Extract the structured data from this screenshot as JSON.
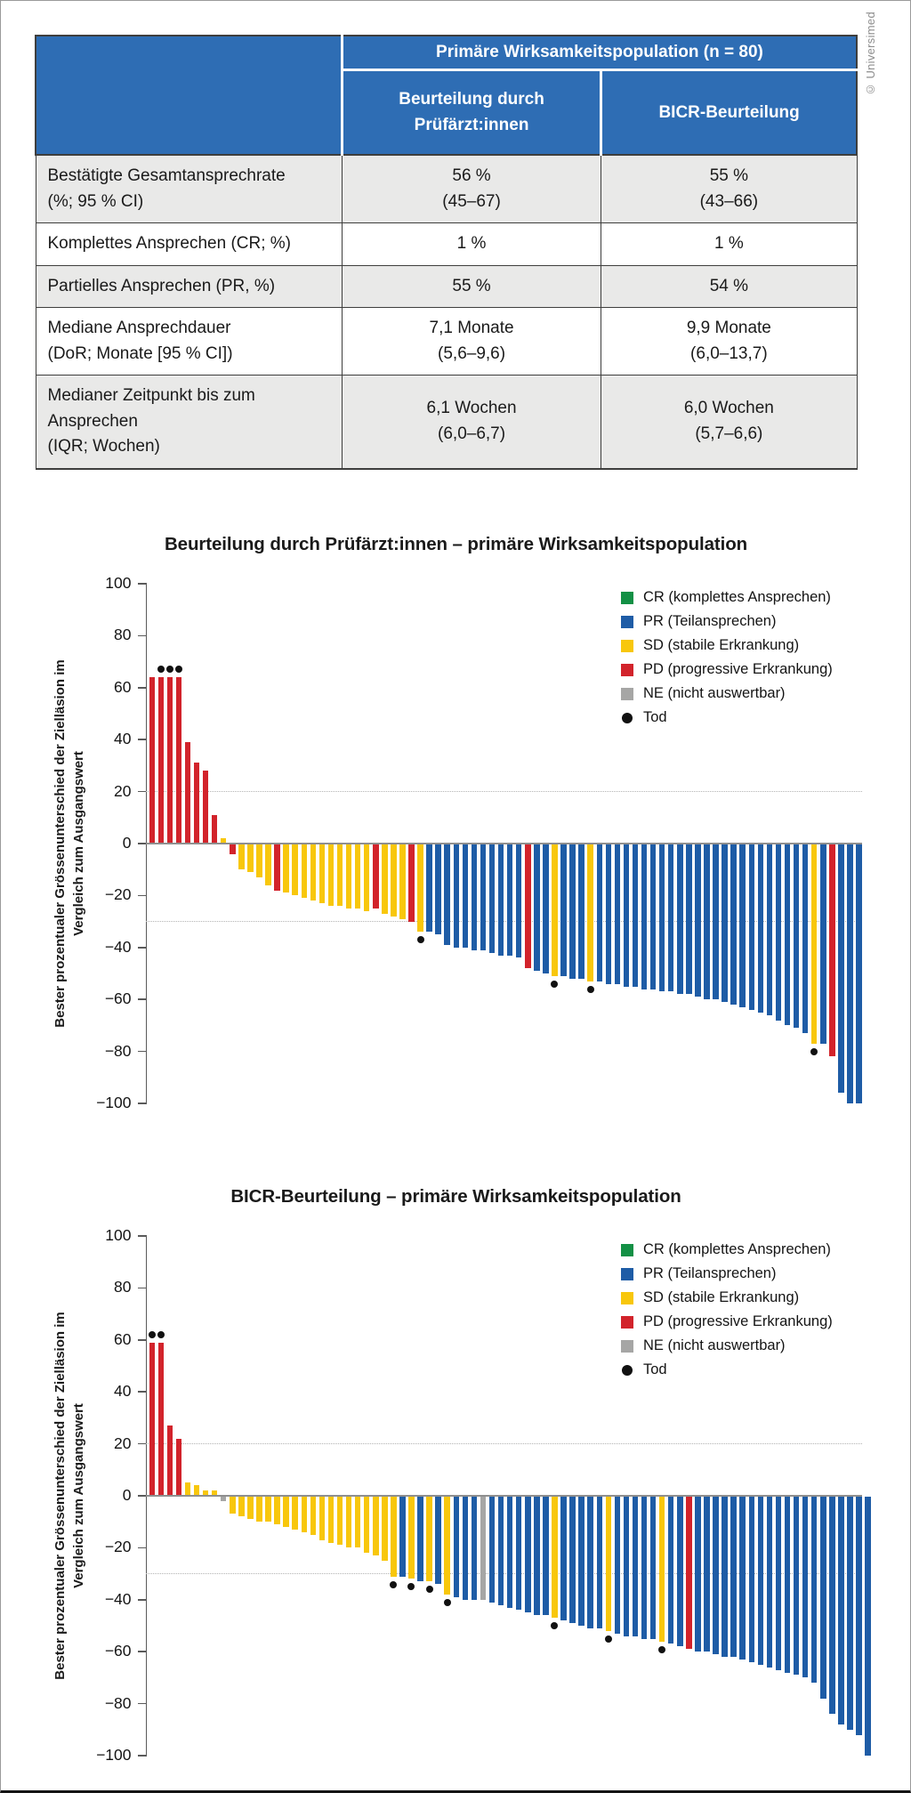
{
  "copyright": "© Universimed",
  "colors": {
    "CR": "#139045",
    "PR": "#1e5ca6",
    "SD": "#f8c70c",
    "PD": "#d2232b",
    "NE": "#a6a6a5",
    "death_dot": "#111111",
    "table_header_blue": "#2e6db4",
    "row_shade": "#e9e9e8",
    "zero_line": "#8f8f8f",
    "dotted_grid": "#b3b3b3",
    "axis": "#5a5a5a"
  },
  "table": {
    "group_header": "Primäre Wirksamkeitspopulation (n = 80)",
    "col_headers": [
      [
        "Beurteilung durch",
        "Prüfärzt:innen"
      ],
      [
        "BICR-Beurteilung"
      ]
    ],
    "rows": [
      {
        "label": [
          "Bestätigte Gesamtansprechrate",
          "(%; 95 % CI)"
        ],
        "investigator": [
          "56 %",
          "(45–67)"
        ],
        "bicr": [
          "55 %",
          "(43–66)"
        ]
      },
      {
        "label": [
          "Komplettes Ansprechen (CR; %)"
        ],
        "investigator": [
          "1 %"
        ],
        "bicr": [
          "1 %"
        ]
      },
      {
        "label": [
          "Partielles Ansprechen (PR, %)"
        ],
        "investigator": [
          "55 %"
        ],
        "bicr": [
          "54 %"
        ]
      },
      {
        "label": [
          "Mediane Ansprechdauer",
          "(DoR; Monate [95 % CI])"
        ],
        "investigator": [
          "7,1 Monate",
          "(5,6–9,6)"
        ],
        "bicr": [
          "9,9 Monate",
          "(6,0–13,7)"
        ]
      },
      {
        "label": [
          "Medianer Zeitpunkt bis zum Ansprechen",
          "(IQR; Wochen)"
        ],
        "investigator": [
          "6,1 Wochen",
          "(6,0–6,7)"
        ],
        "bicr": [
          "6,0 Wochen",
          "(5,7–6,6)"
        ]
      }
    ]
  },
  "chart_data": [
    {
      "type": "bar",
      "subtype": "waterfall",
      "title": "Beurteilung durch Prüfärzt:innen – primäre Wirksamkeitspopulation",
      "ylabel": [
        "Bester prozentualer Grössenunterschied der Zielläsion im",
        "Vergleich zum Ausgangswert"
      ],
      "ylim": [
        -100,
        100
      ],
      "yticks": [
        100,
        80,
        60,
        40,
        20,
        0,
        -20,
        -40,
        -60,
        -80,
        -100
      ],
      "reference_lines": [
        20,
        -30
      ],
      "grid": "dotted-reference-only",
      "legend_position": "top-right",
      "legend": [
        {
          "key": "CR",
          "label": "CR (komplettes Ansprechen)"
        },
        {
          "key": "PR",
          "label": "PR (Teilansprechen)"
        },
        {
          "key": "SD",
          "label": "SD (stabile Erkrankung)"
        },
        {
          "key": "PD",
          "label": "PD (progressive Erkrankung)"
        },
        {
          "key": "NE",
          "label": "NE (nicht auswertbar)"
        },
        {
          "key": "Tod",
          "label": "Tod",
          "shape": "dot"
        }
      ],
      "bars_format": [
        "value_percent",
        "status",
        "death_dot"
      ],
      "bars": [
        [
          64,
          "PD",
          0
        ],
        [
          64,
          "PD",
          1
        ],
        [
          64,
          "PD",
          1
        ],
        [
          64,
          "PD",
          1
        ],
        [
          39,
          "PD",
          0
        ],
        [
          31,
          "PD",
          0
        ],
        [
          28,
          "PD",
          0
        ],
        [
          11,
          "PD",
          0
        ],
        [
          2,
          "SD",
          0
        ],
        [
          -4,
          "PD",
          0
        ],
        [
          -10,
          "SD",
          0
        ],
        [
          -11,
          "SD",
          0
        ],
        [
          -13,
          "SD",
          0
        ],
        [
          -16,
          "SD",
          0
        ],
        [
          -18,
          "PD",
          0
        ],
        [
          -19,
          "SD",
          0
        ],
        [
          -20,
          "SD",
          0
        ],
        [
          -21,
          "SD",
          0
        ],
        [
          -22,
          "SD",
          0
        ],
        [
          -23,
          "SD",
          0
        ],
        [
          -24,
          "SD",
          0
        ],
        [
          -24,
          "SD",
          0
        ],
        [
          -25,
          "SD",
          0
        ],
        [
          -25,
          "SD",
          0
        ],
        [
          -26,
          "SD",
          0
        ],
        [
          -25,
          "PD",
          0
        ],
        [
          -27,
          "SD",
          0
        ],
        [
          -28,
          "SD",
          0
        ],
        [
          -29,
          "SD",
          0
        ],
        [
          -30,
          "PD",
          0
        ],
        [
          -34,
          "SD",
          1
        ],
        [
          -34,
          "PR",
          0
        ],
        [
          -35,
          "PR",
          0
        ],
        [
          -39,
          "PR",
          0
        ],
        [
          -40,
          "PR",
          0
        ],
        [
          -40,
          "PR",
          0
        ],
        [
          -41,
          "PR",
          0
        ],
        [
          -41,
          "PR",
          0
        ],
        [
          -42,
          "PR",
          0
        ],
        [
          -43,
          "PR",
          0
        ],
        [
          -43,
          "PR",
          0
        ],
        [
          -44,
          "PR",
          0
        ],
        [
          -48,
          "PD",
          0
        ],
        [
          -49,
          "PR",
          0
        ],
        [
          -50,
          "PR",
          0
        ],
        [
          -51,
          "SD",
          1
        ],
        [
          -51,
          "PR",
          0
        ],
        [
          -52,
          "PR",
          0
        ],
        [
          -52,
          "PR",
          0
        ],
        [
          -53,
          "SD",
          1
        ],
        [
          -53,
          "PR",
          0
        ],
        [
          -54,
          "PR",
          0
        ],
        [
          -54,
          "PR",
          0
        ],
        [
          -55,
          "PR",
          0
        ],
        [
          -55,
          "PR",
          0
        ],
        [
          -56,
          "PR",
          0
        ],
        [
          -56,
          "PR",
          0
        ],
        [
          -57,
          "PR",
          0
        ],
        [
          -57,
          "PR",
          0
        ],
        [
          -58,
          "PR",
          0
        ],
        [
          -58,
          "PR",
          0
        ],
        [
          -59,
          "PR",
          0
        ],
        [
          -60,
          "PR",
          0
        ],
        [
          -60,
          "PR",
          0
        ],
        [
          -61,
          "PR",
          0
        ],
        [
          -62,
          "PR",
          0
        ],
        [
          -63,
          "PR",
          0
        ],
        [
          -64,
          "PR",
          0
        ],
        [
          -65,
          "PR",
          0
        ],
        [
          -66,
          "PR",
          0
        ],
        [
          -68,
          "PR",
          0
        ],
        [
          -70,
          "PR",
          0
        ],
        [
          -71,
          "PR",
          0
        ],
        [
          -73,
          "PR",
          0
        ],
        [
          -77,
          "SD",
          1
        ],
        [
          -77,
          "PR",
          0
        ],
        [
          -82,
          "PD",
          0
        ],
        [
          -96,
          "PR",
          0
        ],
        [
          -100,
          "PR",
          0
        ],
        [
          -100,
          "PR",
          0
        ]
      ]
    },
    {
      "type": "bar",
      "subtype": "waterfall",
      "title": "BICR-Beurteilung – primäre Wirksamkeitspopulation",
      "ylabel": [
        "Bester prozentualer Grössenunterschied der Zielläsion im",
        "Vergleich zum Ausgangswert"
      ],
      "ylim": [
        -100,
        100
      ],
      "yticks": [
        100,
        80,
        60,
        40,
        20,
        0,
        -20,
        -40,
        -60,
        -80,
        -100
      ],
      "reference_lines": [
        20,
        -30
      ],
      "grid": "dotted-reference-only",
      "legend_position": "top-right",
      "legend": [
        {
          "key": "CR",
          "label": "CR (komplettes Ansprechen)"
        },
        {
          "key": "PR",
          "label": "PR (Teilansprechen)"
        },
        {
          "key": "SD",
          "label": "SD (stabile Erkrankung)"
        },
        {
          "key": "PD",
          "label": "PD (progressive Erkrankung)"
        },
        {
          "key": "NE",
          "label": "NE (nicht auswertbar)"
        },
        {
          "key": "Tod",
          "label": "Tod",
          "shape": "dot"
        }
      ],
      "bars_format": [
        "value_percent",
        "status",
        "death_dot"
      ],
      "bars": [
        [
          59,
          "PD",
          1
        ],
        [
          59,
          "PD",
          1
        ],
        [
          27,
          "PD",
          0
        ],
        [
          22,
          "PD",
          0
        ],
        [
          5,
          "SD",
          0
        ],
        [
          4,
          "SD",
          0
        ],
        [
          2,
          "SD",
          0
        ],
        [
          2,
          "SD",
          0
        ],
        [
          -2,
          "NE",
          0
        ],
        [
          -7,
          "SD",
          0
        ],
        [
          -8,
          "SD",
          0
        ],
        [
          -9,
          "SD",
          0
        ],
        [
          -10,
          "SD",
          0
        ],
        [
          -10,
          "SD",
          0
        ],
        [
          -11,
          "SD",
          0
        ],
        [
          -12,
          "SD",
          0
        ],
        [
          -13,
          "SD",
          0
        ],
        [
          -14,
          "SD",
          0
        ],
        [
          -15,
          "SD",
          0
        ],
        [
          -17,
          "SD",
          0
        ],
        [
          -18,
          "SD",
          0
        ],
        [
          -19,
          "SD",
          0
        ],
        [
          -20,
          "SD",
          0
        ],
        [
          -20,
          "SD",
          0
        ],
        [
          -22,
          "SD",
          0
        ],
        [
          -23,
          "SD",
          0
        ],
        [
          -25,
          "SD",
          0
        ],
        [
          -31,
          "SD",
          1
        ],
        [
          -31,
          "PR",
          0
        ],
        [
          -32,
          "SD",
          1
        ],
        [
          -33,
          "PR",
          0
        ],
        [
          -33,
          "SD",
          1
        ],
        [
          -34,
          "PR",
          0
        ],
        [
          -38,
          "SD",
          1
        ],
        [
          -39,
          "PR",
          0
        ],
        [
          -40,
          "PR",
          0
        ],
        [
          -40,
          "PR",
          0
        ],
        [
          -40,
          "NE",
          0
        ],
        [
          -41,
          "PR",
          0
        ],
        [
          -42,
          "PR",
          0
        ],
        [
          -43,
          "PR",
          0
        ],
        [
          -44,
          "PR",
          0
        ],
        [
          -45,
          "PR",
          0
        ],
        [
          -46,
          "PR",
          0
        ],
        [
          -46,
          "PR",
          0
        ],
        [
          -47,
          "SD",
          1
        ],
        [
          -48,
          "PR",
          0
        ],
        [
          -49,
          "PR",
          0
        ],
        [
          -50,
          "PR",
          0
        ],
        [
          -51,
          "PR",
          0
        ],
        [
          -51,
          "PR",
          0
        ],
        [
          -52,
          "SD",
          1
        ],
        [
          -53,
          "PR",
          0
        ],
        [
          -54,
          "PR",
          0
        ],
        [
          -54,
          "PR",
          0
        ],
        [
          -55,
          "PR",
          0
        ],
        [
          -55,
          "PR",
          0
        ],
        [
          -56,
          "SD",
          1
        ],
        [
          -57,
          "PR",
          0
        ],
        [
          -58,
          "PR",
          0
        ],
        [
          -59,
          "PD",
          0
        ],
        [
          -60,
          "PR",
          0
        ],
        [
          -60,
          "PR",
          0
        ],
        [
          -61,
          "PR",
          0
        ],
        [
          -62,
          "PR",
          0
        ],
        [
          -62,
          "PR",
          0
        ],
        [
          -63,
          "PR",
          0
        ],
        [
          -64,
          "PR",
          0
        ],
        [
          -65,
          "PR",
          0
        ],
        [
          -66,
          "PR",
          0
        ],
        [
          -67,
          "PR",
          0
        ],
        [
          -68,
          "PR",
          0
        ],
        [
          -69,
          "PR",
          0
        ],
        [
          -70,
          "PR",
          0
        ],
        [
          -72,
          "PR",
          0
        ],
        [
          -78,
          "PR",
          0
        ],
        [
          -84,
          "PR",
          0
        ],
        [
          -88,
          "PR",
          0
        ],
        [
          -90,
          "PR",
          0
        ],
        [
          -92,
          "PR",
          0
        ],
        [
          -100,
          "PR",
          0
        ]
      ]
    }
  ]
}
